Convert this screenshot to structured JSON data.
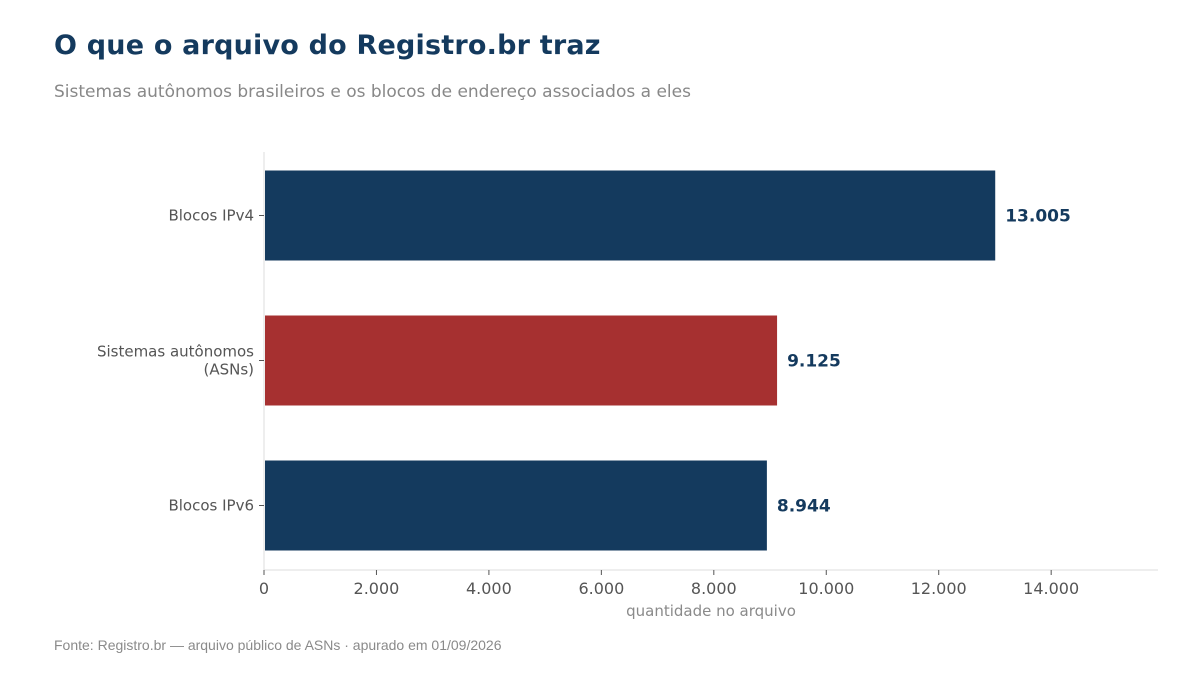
{
  "header": {
    "title": "O que o arquivo do Registro.br traz",
    "subtitle": "Sistemas autônomos brasileiros e os blocos de endereço associados a eles"
  },
  "footer": {
    "source": "Fonte: Registro.br — arquivo público de ASNs · apurado em 01/09/2026"
  },
  "chart_data": {
    "type": "bar",
    "orientation": "horizontal",
    "categories": [
      "Blocos IPv4",
      "Sistemas autônomos (ASNs)",
      "Blocos IPv6"
    ],
    "category_lines": [
      [
        "Blocos IPv4"
      ],
      [
        "Sistemas autônomos",
        "(ASNs)"
      ],
      [
        "Blocos IPv6"
      ]
    ],
    "values": [
      13005,
      9125,
      8944
    ],
    "value_labels": [
      "13.005",
      "9.125",
      "8.944"
    ],
    "colors": [
      "#143a5e",
      "#a63030",
      "#143a5e"
    ],
    "xlabel": "quantidade no arquivo",
    "ylabel": "",
    "xlim": [
      0,
      15900
    ],
    "xticks": [
      0,
      2000,
      4000,
      6000,
      8000,
      10000,
      12000,
      14000
    ],
    "xtick_labels": [
      "0",
      "2.000",
      "4.000",
      "6.000",
      "8.000",
      "10.000",
      "12.000",
      "14.000"
    ],
    "grid": false
  }
}
